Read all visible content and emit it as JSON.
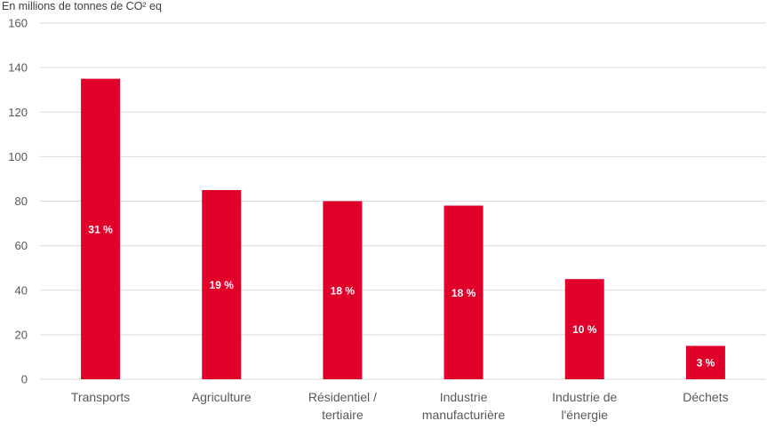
{
  "chart_data": {
    "type": "bar",
    "title": "",
    "ylabel": "En millions de tonnes de CO² eq",
    "xlabel": "",
    "categories": [
      "Transports",
      "Agriculture",
      "Résidentiel / tertiaire",
      "Industrie manufacturière",
      "Industrie de l'énergie",
      "Déchets"
    ],
    "category_lines": [
      [
        "Transports"
      ],
      [
        "Agriculture"
      ],
      [
        "Résidentiel /",
        "tertiaire"
      ],
      [
        "Industrie",
        "manufacturière"
      ],
      [
        "Industrie de",
        "l'énergie"
      ],
      [
        "Déchets"
      ]
    ],
    "values": [
      135,
      85,
      80,
      78,
      45,
      15
    ],
    "data_labels": [
      "31 %",
      "19 %",
      "18 %",
      "18 %",
      "10 %",
      "3 %"
    ],
    "ylim": [
      0,
      160
    ],
    "yticks": [
      0,
      20,
      40,
      60,
      80,
      100,
      120,
      140,
      160
    ],
    "grid": true,
    "legend": "none",
    "colors": {
      "bar": "#E0002A",
      "grid": "#D9D9D9",
      "axis_text": "#595959",
      "data_label": "#FFFFFF"
    }
  }
}
